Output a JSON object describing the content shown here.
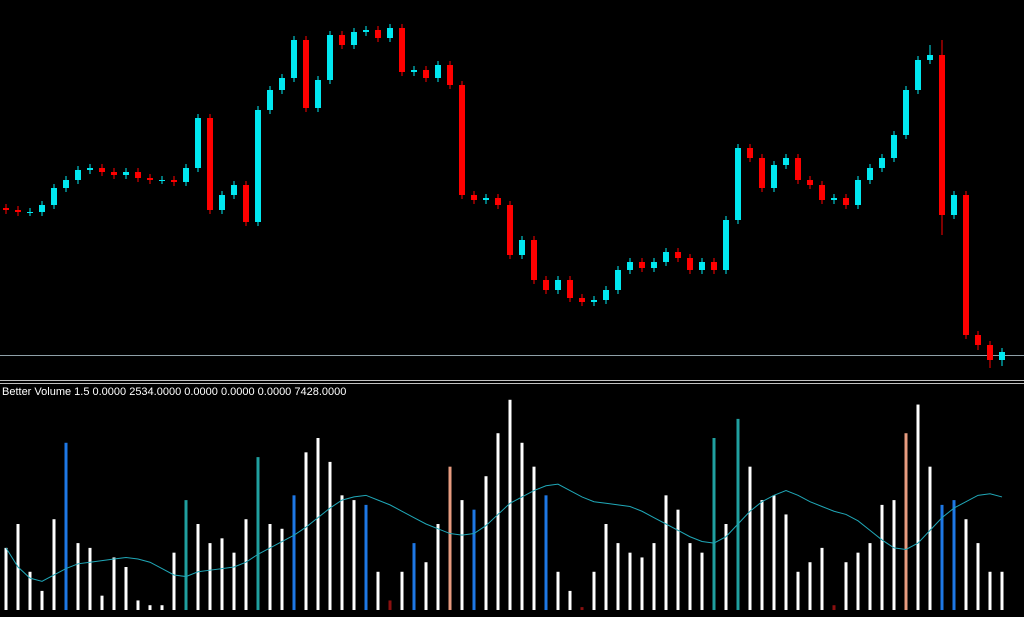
{
  "chart_data": [
    {
      "type": "candlestick",
      "ylim": [
        0,
        380
      ],
      "up_color": "#00e8f0",
      "down_color": "#ff0000",
      "open": [
        172,
        170,
        168,
        168,
        175,
        192,
        200,
        210,
        212,
        208,
        205,
        208,
        202,
        200,
        200,
        198,
        212,
        262,
        170,
        185,
        195,
        158,
        270,
        290,
        302,
        340,
        272,
        300,
        345,
        335,
        348,
        350,
        342,
        352,
        308,
        310,
        302,
        315,
        295,
        185,
        180,
        182,
        175,
        125,
        140,
        100,
        90,
        100,
        82,
        78,
        80,
        90,
        110,
        118,
        112,
        118,
        128,
        122,
        110,
        118,
        110,
        160,
        232,
        222,
        192,
        215,
        222,
        200,
        195,
        180,
        182,
        175,
        200,
        212,
        222,
        245,
        290,
        320,
        325,
        165,
        185,
        45,
        35,
        20
      ],
      "high": [
        176,
        174,
        172,
        179,
        196,
        204,
        214,
        216,
        216,
        212,
        212,
        212,
        206,
        204,
        204,
        216,
        266,
        266,
        189,
        199,
        199,
        274,
        294,
        306,
        344,
        344,
        304,
        349,
        349,
        352,
        354,
        354,
        356,
        356,
        314,
        314,
        319,
        319,
        299,
        189,
        186,
        186,
        179,
        144,
        144,
        104,
        104,
        104,
        86,
        84,
        94,
        114,
        122,
        122,
        122,
        132,
        132,
        126,
        122,
        122,
        164,
        236,
        236,
        226,
        219,
        226,
        226,
        204,
        199,
        186,
        186,
        204,
        216,
        226,
        249,
        294,
        324,
        335,
        340,
        189,
        189,
        49,
        39,
        32
      ],
      "low": [
        166,
        164,
        164,
        164,
        171,
        188,
        196,
        206,
        204,
        201,
        201,
        198,
        196,
        196,
        194,
        194,
        208,
        166,
        166,
        181,
        154,
        154,
        266,
        286,
        298,
        268,
        268,
        296,
        331,
        331,
        344,
        338,
        338,
        304,
        304,
        298,
        298,
        291,
        181,
        176,
        176,
        171,
        121,
        121,
        96,
        86,
        86,
        78,
        74,
        74,
        76,
        86,
        106,
        108,
        108,
        114,
        118,
        106,
        106,
        106,
        106,
        156,
        218,
        188,
        188,
        211,
        196,
        191,
        176,
        176,
        171,
        171,
        196,
        208,
        218,
        241,
        286,
        316,
        145,
        161,
        41,
        30,
        12,
        14
      ],
      "close": [
        170,
        168,
        168,
        175,
        192,
        200,
        210,
        212,
        208,
        205,
        208,
        202,
        200,
        200,
        198,
        212,
        262,
        170,
        185,
        195,
        158,
        270,
        290,
        302,
        340,
        272,
        300,
        345,
        335,
        348,
        350,
        342,
        352,
        308,
        310,
        302,
        315,
        295,
        185,
        180,
        182,
        175,
        125,
        140,
        100,
        90,
        100,
        82,
        78,
        80,
        90,
        110,
        118,
        112,
        118,
        128,
        122,
        110,
        118,
        110,
        160,
        232,
        222,
        192,
        215,
        222,
        200,
        195,
        180,
        182,
        175,
        200,
        212,
        222,
        245,
        290,
        320,
        325,
        165,
        185,
        45,
        35,
        20,
        28
      ]
    },
    {
      "type": "bar",
      "title": "Better Volume 1.5 0.0000 2534.0000 0.0000 0.0000 0.0000 7428.0000",
      "ylim": [
        0,
        13500
      ],
      "values": [
        3900,
        5400,
        2400,
        1200,
        5700,
        10500,
        4200,
        3900,
        900,
        3300,
        2700,
        600,
        300,
        300,
        3600,
        6900,
        5400,
        4200,
        4500,
        3600,
        5700,
        9600,
        5400,
        5100,
        7200,
        9900,
        10800,
        9300,
        7200,
        6900,
        6600,
        2400,
        600,
        2400,
        4200,
        3000,
        5400,
        9000,
        6900,
        6300,
        8400,
        11100,
        13200,
        10500,
        9000,
        7200,
        2400,
        1200,
        180,
        2400,
        5400,
        4200,
        3600,
        3300,
        4200,
        7200,
        6300,
        4200,
        3600,
        10800,
        5400,
        12000,
        9000,
        6900,
        7200,
        6000,
        2400,
        3000,
        3900,
        300,
        3000,
        3600,
        4200,
        6600,
        6900,
        11100,
        12900,
        9000,
        6600,
        6900,
        5700,
        4200,
        2400,
        2400
      ],
      "colors": [
        "#ffffff",
        "#ffffff",
        "#ffffff",
        "#ffffff",
        "#ffffff",
        "#1e78e6",
        "#ffffff",
        "#ffffff",
        "#ffffff",
        "#ffffff",
        "#ffffff",
        "#ffffff",
        "#ffffff",
        "#ffffff",
        "#ffffff",
        "#20a0a0",
        "#ffffff",
        "#ffffff",
        "#ffffff",
        "#ffffff",
        "#ffffff",
        "#20a0a0",
        "#ffffff",
        "#ffffff",
        "#1e78e6",
        "#ffffff",
        "#ffffff",
        "#ffffff",
        "#ffffff",
        "#ffffff",
        "#1e78e6",
        "#ffffff",
        "#8b1010",
        "#ffffff",
        "#1e78e6",
        "#ffffff",
        "#ffffff",
        "#e89c80",
        "#ffffff",
        "#1e78e6",
        "#ffffff",
        "#ffffff",
        "#ffffff",
        "#ffffff",
        "#ffffff",
        "#1e78e6",
        "#ffffff",
        "#ffffff",
        "#8b1010",
        "#ffffff",
        "#ffffff",
        "#ffffff",
        "#ffffff",
        "#ffffff",
        "#ffffff",
        "#ffffff",
        "#ffffff",
        "#ffffff",
        "#ffffff",
        "#20a0a0",
        "#ffffff",
        "#20a0a0",
        "#ffffff",
        "#ffffff",
        "#ffffff",
        "#ffffff",
        "#ffffff",
        "#ffffff",
        "#ffffff",
        "#8b1010",
        "#ffffff",
        "#ffffff",
        "#ffffff",
        "#ffffff",
        "#ffffff",
        "#e89c80",
        "#ffffff",
        "#ffffff",
        "#1e78e6",
        "#1e78e6",
        "#ffffff",
        "#ffffff",
        "#ffffff",
        "#ffffff"
      ],
      "average": [
        3900,
        2700,
        2000,
        1800,
        2200,
        2600,
        2900,
        3000,
        3100,
        3200,
        3300,
        3200,
        3000,
        2600,
        2200,
        2100,
        2400,
        2500,
        2600,
        2700,
        3000,
        3500,
        3900,
        4300,
        4700,
        5200,
        5800,
        6400,
        6900,
        7100,
        7200,
        6900,
        6600,
        6200,
        5800,
        5400,
        5100,
        4800,
        4700,
        4800,
        5300,
        6000,
        6700,
        7100,
        7500,
        7800,
        7900,
        7500,
        7100,
        6800,
        6700,
        6600,
        6500,
        6200,
        5800,
        5400,
        5000,
        4600,
        4300,
        4200,
        4600,
        5400,
        6200,
        6800,
        7200,
        7500,
        7200,
        6800,
        6500,
        6200,
        6000,
        5600,
        5000,
        4400,
        3900,
        3800,
        4200,
        5000,
        5800,
        6400,
        6800,
        7200,
        7300,
        7100
      ],
      "average_color": "#20a8b8"
    }
  ]
}
